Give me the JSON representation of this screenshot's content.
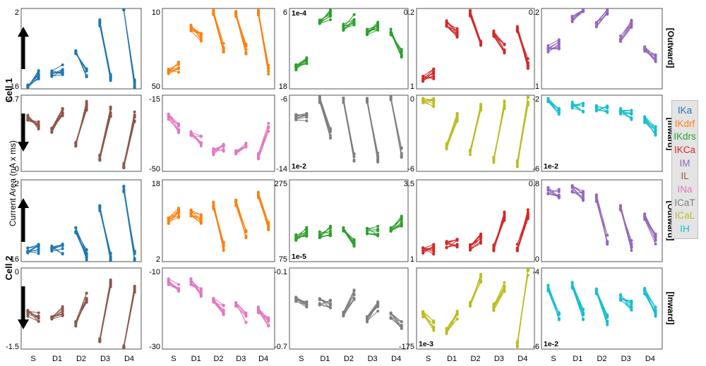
{
  "figure": {
    "y_axis_label": "Current Area (nA x ms)",
    "row_labels": [
      "Cell 1",
      "Cell 2"
    ],
    "side_labels": [
      "[Outward]",
      "[Inward]",
      "[Outward]",
      "[Inward]"
    ],
    "legend": [
      {
        "name": "IKa",
        "color": "#1f77b4"
      },
      {
        "name": "IKdrf",
        "color": "#ff7f0e"
      },
      {
        "name": "IKdrs",
        "color": "#2ca02c"
      },
      {
        "name": "IKCa",
        "color": "#d62728"
      },
      {
        "name": "IM",
        "color": "#9467bd"
      },
      {
        "name": "IL",
        "color": "#8c564b"
      },
      {
        "name": "INa",
        "color": "#e377c2"
      },
      {
        "name": "ICaT",
        "color": "#7f7f7f"
      },
      {
        "name": "ICaL",
        "color": "#bcbd22"
      },
      {
        "name": "IH",
        "color": "#17becf"
      }
    ]
  },
  "chart_data": [
    {
      "type": "line",
      "row": 0,
      "col": 0,
      "series_name": "IKa",
      "color": "#1f77b4",
      "categories": [
        "S",
        "D1",
        "D2",
        "D3",
        "D4"
      ],
      "ylim": [
        2,
        16
      ],
      "yticks": [
        "2",
        "16"
      ],
      "multiplier": "",
      "values": [
        [
          2.5,
          4.5
        ],
        [
          4.6,
          5.3
        ],
        [
          8.6,
          4.6
        ],
        [
          13.5,
          4.2
        ],
        [
          16.3,
          2.7
        ]
      ]
    },
    {
      "type": "line",
      "row": 0,
      "col": 1,
      "series_name": "IKdrf",
      "color": "#ff7f0e",
      "categories": [
        "S",
        "D1",
        "D2",
        "D3",
        "D4"
      ],
      "ylim": [
        0,
        50
      ],
      "yticks": [
        "10",
        "50"
      ],
      "multiplier": "",
      "values": [
        [
          11.5,
          13.5
        ],
        [
          38,
          32
        ],
        [
          48,
          26
        ],
        [
          47,
          25
        ],
        [
          48,
          12
        ]
      ]
    },
    {
      "type": "line",
      "row": 0,
      "col": 2,
      "series_name": "IKdrs",
      "color": "#2ca02c",
      "categories": [
        "S",
        "D1",
        "D2",
        "D3",
        "D4"
      ],
      "ylim": [
        6,
        18
      ],
      "yticks": [
        "6",
        "18"
      ],
      "multiplier": "1e-4",
      "values": [
        [
          9.2,
          9.9
        ],
        [
          15.8,
          17
        ],
        [
          15.2,
          16.3
        ],
        [
          14.5,
          15.3
        ],
        [
          14.5,
          11.5
        ]
      ]
    },
    {
      "type": "line",
      "row": 0,
      "col": 3,
      "series_name": "IKCa",
      "color": "#d62728",
      "categories": [
        "S",
        "D1",
        "D2",
        "D3",
        "D4"
      ],
      "ylim": [
        0.2,
        1
      ],
      "yticks": [
        "0.2",
        "1"
      ],
      "multiplier": "",
      "values": [
        [
          0.3,
          0.35
        ],
        [
          0.85,
          0.75
        ],
        [
          0.95,
          0.65
        ],
        [
          0.75,
          0.6
        ],
        [
          0.8,
          0.45
        ]
      ]
    },
    {
      "type": "line",
      "row": 0,
      "col": 4,
      "series_name": "IM",
      "color": "#9467bd",
      "categories": [
        "S",
        "D1",
        "D2",
        "D3",
        "D4"
      ],
      "ylim": [
        0.2,
        1
      ],
      "yticks": [
        "0.2",
        "1"
      ],
      "multiplier": "",
      "values": [
        [
          0.6,
          0.65
        ],
        [
          0.9,
          1.02
        ],
        [
          0.85,
          0.98
        ],
        [
          0.7,
          0.85
        ],
        [
          0.6,
          0.5
        ]
      ]
    },
    {
      "type": "line",
      "row": 1,
      "col": 0,
      "series_name": "IL",
      "color": "#8c564b",
      "categories": [
        "S",
        "D1",
        "D2",
        "D3",
        "D4"
      ],
      "ylim": [
        -0.7,
        0
      ],
      "yticks": [
        "-0.7",
        "0"
      ],
      "multiplier": "",
      "values": [
        [
          -0.2,
          -0.27
        ],
        [
          -0.33,
          -0.15
        ],
        [
          -0.44,
          -0.1
        ],
        [
          -0.57,
          -0.15
        ],
        [
          -0.64,
          -0.2
        ]
      ]
    },
    {
      "type": "line",
      "row": 1,
      "col": 1,
      "series_name": "INa",
      "color": "#e377c2",
      "categories": [
        "S",
        "D1",
        "D2",
        "D3",
        "D4"
      ],
      "ylim": [
        -50,
        -15
      ],
      "yticks": [
        "-15",
        "-50"
      ],
      "multiplier": "",
      "values": [
        [
          -25,
          -30
        ],
        [
          -33,
          -36
        ],
        [
          -41,
          -39
        ],
        [
          -41,
          -37
        ],
        [
          -43,
          -30
        ]
      ]
    },
    {
      "type": "line",
      "row": 1,
      "col": 2,
      "series_name": "ICaT",
      "color": "#7f7f7f",
      "categories": [
        "S",
        "D1",
        "D2",
        "D3",
        "D4"
      ],
      "ylim": [
        -14,
        -6
      ],
      "yticks": [
        "-6",
        "-14"
      ],
      "multiplier": "1e-2",
      "values": [
        [
          -8.3,
          -8.3
        ],
        [
          -6.5,
          -10
        ],
        [
          -6.5,
          -12.5
        ],
        [
          -6.5,
          -12.5
        ],
        [
          -6.3,
          -12
        ]
      ]
    },
    {
      "type": "line",
      "row": 1,
      "col": 3,
      "series_name": "ICaL",
      "color": "#bcbd22",
      "categories": [
        "S",
        "D1",
        "D2",
        "D3",
        "D4"
      ],
      "ylim": [
        -6,
        0
      ],
      "yticks": [
        "0",
        "-6"
      ],
      "multiplier": "",
      "values": [
        [
          -0.4,
          -0.6
        ],
        [
          -4,
          -1.8
        ],
        [
          -4.5,
          -0.9
        ],
        [
          -5.1,
          -0.8
        ],
        [
          -5.4,
          -0.4
        ]
      ]
    },
    {
      "type": "line",
      "row": 1,
      "col": 4,
      "series_name": "IH",
      "color": "#17becf",
      "categories": [
        "S",
        "D1",
        "D2",
        "D3",
        "D4"
      ],
      "ylim": [
        -6.5,
        -1.8
      ],
      "yticks": [
        "-2",
        "-6"
      ],
      "multiplier": "1e-2",
      "values": [
        [
          -2.1,
          -2.7
        ],
        [
          -2.4,
          -2.6
        ],
        [
          -2.6,
          -2.7
        ],
        [
          -2.8,
          -3
        ],
        [
          -3.3,
          -4
        ]
      ]
    },
    {
      "type": "line",
      "row": 2,
      "col": 0,
      "series_name": "IKa",
      "color": "#1f77b4",
      "categories": [
        "S",
        "D1",
        "D2",
        "D3",
        "D4"
      ],
      "ylim": [
        2,
        16
      ],
      "yticks": [
        "2",
        "16"
      ],
      "multiplier": "",
      "values": [
        [
          3.9,
          4.3
        ],
        [
          4.1,
          4.2
        ],
        [
          7.5,
          3.2
        ],
        [
          11,
          2.7
        ],
        [
          14.5,
          3
        ]
      ]
    },
    {
      "type": "line",
      "row": 2,
      "col": 1,
      "series_name": "IKdrf",
      "color": "#ff7f0e",
      "categories": [
        "S",
        "D1",
        "D2",
        "D3",
        "D4"
      ],
      "ylim": [
        2,
        18
      ],
      "yticks": [
        "18",
        "2"
      ],
      "multiplier": "",
      "values": [
        [
          10,
          11.5
        ],
        [
          11.5,
          10.5
        ],
        [
          13,
          5
        ],
        [
          13.5,
          7.5
        ],
        [
          15,
          9
        ]
      ]
    },
    {
      "type": "line",
      "row": 2,
      "col": 2,
      "series_name": "IKdrs",
      "color": "#2ca02c",
      "categories": [
        "S",
        "D1",
        "D2",
        "D3",
        "D4"
      ],
      "ylim": [
        75,
        275
      ],
      "yticks": [
        "275",
        "75"
      ],
      "multiplier": "1e-5",
      "values": [
        [
          135,
          150
        ],
        [
          140,
          150
        ],
        [
          150,
          120
        ],
        [
          150,
          150
        ],
        [
          150,
          175
        ]
      ]
    },
    {
      "type": "line",
      "row": 2,
      "col": 3,
      "series_name": "IKCa",
      "color": "#d62728",
      "categories": [
        "S",
        "D1",
        "D2",
        "D3",
        "D4"
      ],
      "ylim": [
        0.6,
        3.5
      ],
      "yticks": [
        "3.5",
        "1"
      ],
      "multiplier": "",
      "values": [
        [
          1,
          1.05
        ],
        [
          1.2,
          1.3
        ],
        [
          1.1,
          1.4
        ],
        [
          1.1,
          2.2
        ],
        [
          1.1,
          2.3
        ]
      ]
    },
    {
      "type": "line",
      "row": 2,
      "col": 4,
      "series_name": "IM",
      "color": "#9467bd",
      "categories": [
        "S",
        "D1",
        "D2",
        "D3",
        "D4"
      ],
      "ylim": [
        0,
        0.9
      ],
      "yticks": [
        "0.8",
        "0"
      ],
      "multiplier": "",
      "values": [
        [
          0.78,
          0.75
        ],
        [
          0.8,
          0.72
        ],
        [
          0.7,
          0.25
        ],
        [
          0.6,
          0.18
        ],
        [
          0.5,
          0.25
        ]
      ]
    },
    {
      "type": "line",
      "row": 3,
      "col": 0,
      "series_name": "IL",
      "color": "#8c564b",
      "categories": [
        "S",
        "D1",
        "D2",
        "D3",
        "D4"
      ],
      "ylim": [
        -1.5,
        0.1
      ],
      "yticks": [
        "0",
        "-1.5"
      ],
      "multiplier": "",
      "values": [
        [
          -0.8,
          -0.85
        ],
        [
          -0.85,
          -0.75
        ],
        [
          -1,
          -0.5
        ],
        [
          -1.3,
          -0.2
        ],
        [
          -1.5,
          -0.3
        ]
      ]
    },
    {
      "type": "line",
      "row": 3,
      "col": 1,
      "series_name": "INa",
      "color": "#e377c2",
      "categories": [
        "S",
        "D1",
        "D2",
        "D3",
        "D4"
      ],
      "ylim": [
        -31,
        -8
      ],
      "yticks": [
        "-10",
        "-30"
      ],
      "multiplier": "",
      "values": [
        [
          -12,
          -14
        ],
        [
          -12,
          -15
        ],
        [
          -17,
          -20
        ],
        [
          -18,
          -22
        ],
        [
          -20,
          -23
        ]
      ]
    },
    {
      "type": "line",
      "row": 3,
      "col": 2,
      "series_name": "ICaT",
      "color": "#7f7f7f",
      "categories": [
        "S",
        "D1",
        "D2",
        "D3",
        "D4"
      ],
      "ylim": [
        -0.7,
        -0.1
      ],
      "yticks": [
        "-0.1",
        "-0.7"
      ],
      "multiplier": "",
      "values": [
        [
          -0.33,
          -0.35
        ],
        [
          -0.35,
          -0.36
        ],
        [
          -0.45,
          -0.3
        ],
        [
          -0.48,
          -0.38
        ],
        [
          -0.45,
          -0.52
        ]
      ]
    },
    {
      "type": "line",
      "row": 3,
      "col": 3,
      "series_name": "ICaL",
      "color": "#bcbd22",
      "categories": [
        "S",
        "D1",
        "D2",
        "D3",
        "D4"
      ],
      "ylim": [
        -175,
        0
      ],
      "yticks": [
        "-175"
      ],
      "multiplier": "1e-3",
      "values": [
        [
          -100,
          -125
        ],
        [
          -135,
          -100
        ],
        [
          -80,
          -20
        ],
        [
          -85,
          -40
        ],
        [
          -165,
          -5
        ]
      ]
    },
    {
      "type": "line",
      "row": 3,
      "col": 4,
      "series_name": "IH",
      "color": "#17becf",
      "categories": [
        "S",
        "D1",
        "D2",
        "D3",
        "D4"
      ],
      "ylim": [
        -6.3,
        -3.5
      ],
      "yticks": [
        "-4",
        "-6"
      ],
      "multiplier": "1e-2",
      "values": [
        [
          -4.2,
          -5.2
        ],
        [
          -4.1,
          -5.1
        ],
        [
          -4.3,
          -5.3
        ],
        [
          -4.5,
          -4.8
        ],
        [
          -4.3,
          -5
        ]
      ]
    }
  ]
}
